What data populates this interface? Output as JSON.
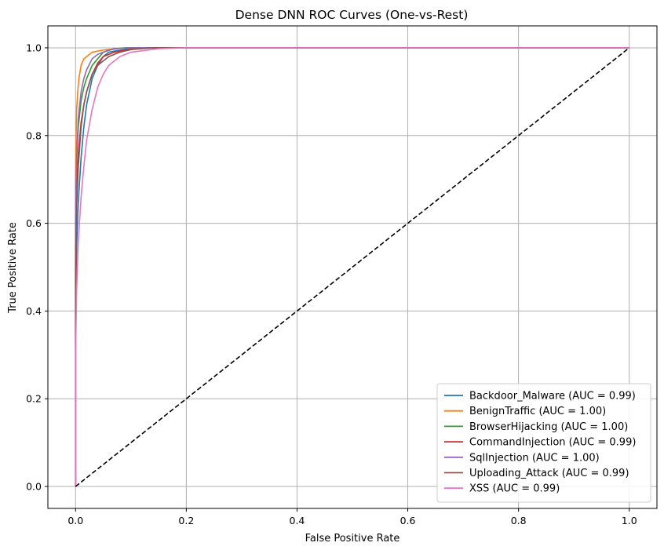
{
  "chart_data": {
    "type": "line",
    "title": "Dense DNN ROC Curves (One-vs-Rest)",
    "xlabel": "False Positive Rate",
    "ylabel": "True Positive Rate",
    "xlim": [
      -0.05,
      1.05
    ],
    "ylim": [
      -0.05,
      1.05
    ],
    "xticks": [
      0.0,
      0.2,
      0.4,
      0.6,
      0.8,
      1.0
    ],
    "yticks": [
      0.0,
      0.2,
      0.4,
      0.6,
      0.8,
      1.0
    ],
    "xtick_labels": [
      "0.0",
      "0.2",
      "0.4",
      "0.6",
      "0.8",
      "1.0"
    ],
    "ytick_labels": [
      "0.0",
      "0.2",
      "0.4",
      "0.6",
      "0.8",
      "1.0"
    ],
    "grid": true,
    "legend_position": "lower-right",
    "series": [
      {
        "name": "Backdoor_Malware (AUC = 0.99)",
        "color": "#1f77b4",
        "x": [
          0,
          0.0,
          0.002,
          0.005,
          0.01,
          0.015,
          0.02,
          0.03,
          0.04,
          0.05,
          0.06,
          0.08,
          0.1,
          0.15,
          0.2,
          1.0
        ],
        "y": [
          0,
          0.4,
          0.55,
          0.65,
          0.75,
          0.82,
          0.87,
          0.93,
          0.96,
          0.98,
          0.99,
          0.995,
          0.998,
          1.0,
          1.0,
          1.0
        ]
      },
      {
        "name": "BenignTraffic (AUC = 1.00)",
        "color": "#ff7f0e",
        "x": [
          0,
          0.0,
          0.001,
          0.002,
          0.004,
          0.006,
          0.01,
          0.015,
          0.02,
          0.03,
          0.05,
          0.08,
          0.1,
          1.0
        ],
        "y": [
          0,
          0.7,
          0.8,
          0.86,
          0.9,
          0.93,
          0.96,
          0.975,
          0.98,
          0.99,
          0.995,
          0.999,
          1.0,
          1.0
        ]
      },
      {
        "name": "BrowserHijacking (AUC = 1.00)",
        "color": "#2ca02c",
        "x": [
          0,
          0.0,
          0.002,
          0.005,
          0.01,
          0.015,
          0.02,
          0.03,
          0.04,
          0.05,
          0.07,
          0.09,
          0.12,
          1.0
        ],
        "y": [
          0,
          0.6,
          0.75,
          0.82,
          0.88,
          0.91,
          0.93,
          0.96,
          0.975,
          0.99,
          0.998,
          1.0,
          1.0,
          1.0
        ]
      },
      {
        "name": "CommandInjection (AUC = 0.99)",
        "color": "#d62728",
        "x": [
          0,
          0.0,
          0.002,
          0.005,
          0.01,
          0.015,
          0.02,
          0.03,
          0.04,
          0.05,
          0.07,
          0.1,
          0.13,
          1.0
        ],
        "y": [
          0,
          0.55,
          0.68,
          0.76,
          0.83,
          0.87,
          0.9,
          0.94,
          0.965,
          0.98,
          0.99,
          0.997,
          1.0,
          1.0
        ]
      },
      {
        "name": "SqlInjection (AUC = 1.00)",
        "color": "#9467bd",
        "x": [
          0,
          0.0,
          0.002,
          0.005,
          0.01,
          0.015,
          0.02,
          0.03,
          0.04,
          0.06,
          0.08,
          0.1,
          1.0
        ],
        "y": [
          0,
          0.62,
          0.76,
          0.84,
          0.9,
          0.93,
          0.95,
          0.975,
          0.985,
          0.995,
          0.999,
          1.0,
          1.0
        ]
      },
      {
        "name": "Uploading_Attack (AUC = 0.99)",
        "color": "#8c564b",
        "x": [
          0,
          0.0,
          0.002,
          0.005,
          0.01,
          0.015,
          0.02,
          0.03,
          0.04,
          0.06,
          0.08,
          0.1,
          0.14,
          1.0
        ],
        "y": [
          0,
          0.5,
          0.64,
          0.73,
          0.82,
          0.87,
          0.9,
          0.94,
          0.96,
          0.98,
          0.99,
          0.996,
          1.0,
          1.0
        ]
      },
      {
        "name": "XSS (AUC = 0.99)",
        "color": "#e377c2",
        "x": [
          0,
          0.0,
          0.002,
          0.005,
          0.01,
          0.015,
          0.02,
          0.03,
          0.04,
          0.05,
          0.06,
          0.08,
          0.1,
          0.15,
          0.2,
          1.0
        ],
        "y": [
          0,
          0.3,
          0.45,
          0.56,
          0.66,
          0.73,
          0.79,
          0.86,
          0.91,
          0.94,
          0.96,
          0.98,
          0.99,
          0.998,
          1.0,
          1.0
        ]
      }
    ],
    "reference_line": {
      "x": [
        0,
        1
      ],
      "y": [
        0,
        1
      ],
      "color": "#000000",
      "style": "dashed"
    }
  }
}
